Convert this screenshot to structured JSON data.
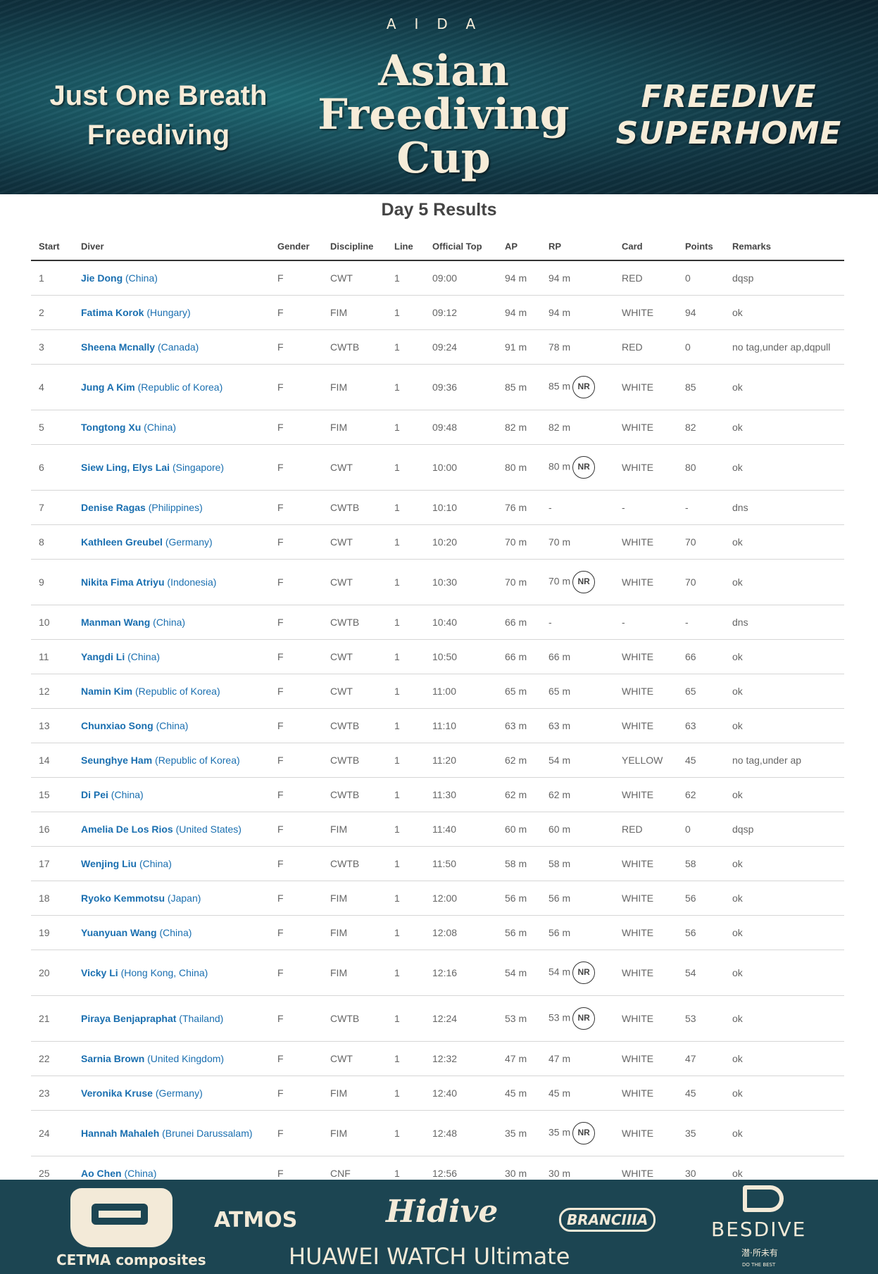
{
  "banner": {
    "aida": "AIDA",
    "left_text": "Just One Breath Freediving",
    "center_title": "Asian Freediving Cup",
    "right_text": "FREEDIVE SUPERHOME"
  },
  "title": "Day 5 Results",
  "columns": [
    "Start",
    "Diver",
    "Gender",
    "Discipline",
    "Line",
    "Official Top",
    "AP",
    "RP",
    "Card",
    "Points",
    "Remarks"
  ],
  "colors": {
    "name": "#1a6fb0",
    "banner": "#184f5c",
    "footer": "#1c4552"
  },
  "rows": [
    {
      "start": "1",
      "name": "Jie Dong",
      "country": "(China)",
      "gender": "F",
      "discipline": "CWT",
      "line": "1",
      "top": "09:00",
      "ap": "94 m",
      "rp": "94 m",
      "nr": false,
      "card": "RED",
      "points": "0",
      "remarks": "dqsp"
    },
    {
      "start": "2",
      "name": "Fatima Korok",
      "country": "(Hungary)",
      "gender": "F",
      "discipline": "FIM",
      "line": "1",
      "top": "09:12",
      "ap": "94 m",
      "rp": "94 m",
      "nr": false,
      "card": "WHITE",
      "points": "94",
      "remarks": "ok"
    },
    {
      "start": "3",
      "name": "Sheena Mcnally",
      "country": "(Canada)",
      "gender": "F",
      "discipline": "CWTB",
      "line": "1",
      "top": "09:24",
      "ap": "91 m",
      "rp": "78 m",
      "nr": false,
      "card": "RED",
      "points": "0",
      "remarks": "no tag,under ap,dqpull"
    },
    {
      "start": "4",
      "name": "Jung A Kim",
      "country": "(Republic of Korea)",
      "gender": "F",
      "discipline": "FIM",
      "line": "1",
      "top": "09:36",
      "ap": "85 m",
      "rp": "85 m",
      "nr": true,
      "card": "WHITE",
      "points": "85",
      "remarks": "ok"
    },
    {
      "start": "5",
      "name": "Tongtong Xu",
      "country": "(China)",
      "gender": "F",
      "discipline": "FIM",
      "line": "1",
      "top": "09:48",
      "ap": "82 m",
      "rp": "82 m",
      "nr": false,
      "card": "WHITE",
      "points": "82",
      "remarks": "ok"
    },
    {
      "start": "6",
      "name": "Siew Ling, Elys Lai",
      "country": "(Singapore)",
      "gender": "F",
      "discipline": "CWT",
      "line": "1",
      "top": "10:00",
      "ap": "80 m",
      "rp": "80 m",
      "nr": true,
      "card": "WHITE",
      "points": "80",
      "remarks": "ok"
    },
    {
      "start": "7",
      "name": "Denise Ragas",
      "country": "(Philippines)",
      "gender": "F",
      "discipline": "CWTB",
      "line": "1",
      "top": "10:10",
      "ap": "76 m",
      "rp": "-",
      "nr": false,
      "card": "-",
      "points": "-",
      "remarks": "dns"
    },
    {
      "start": "8",
      "name": "Kathleen Greubel",
      "country": "(Germany)",
      "gender": "F",
      "discipline": "CWT",
      "line": "1",
      "top": "10:20",
      "ap": "70 m",
      "rp": "70 m",
      "nr": false,
      "card": "WHITE",
      "points": "70",
      "remarks": "ok"
    },
    {
      "start": "9",
      "name": "Nikita Fima Atriyu",
      "country": "(Indonesia)",
      "gender": "F",
      "discipline": "CWT",
      "line": "1",
      "top": "10:30",
      "ap": "70 m",
      "rp": "70 m",
      "nr": true,
      "card": "WHITE",
      "points": "70",
      "remarks": "ok"
    },
    {
      "start": "10",
      "name": "Manman Wang",
      "country": "(China)",
      "gender": "F",
      "discipline": "CWTB",
      "line": "1",
      "top": "10:40",
      "ap": "66 m",
      "rp": "-",
      "nr": false,
      "card": "-",
      "points": "-",
      "remarks": "dns"
    },
    {
      "start": "11",
      "name": "Yangdi Li",
      "country": "(China)",
      "gender": "F",
      "discipline": "CWT",
      "line": "1",
      "top": "10:50",
      "ap": "66 m",
      "rp": "66 m",
      "nr": false,
      "card": "WHITE",
      "points": "66",
      "remarks": "ok"
    },
    {
      "start": "12",
      "name": "Namin Kim",
      "country": "(Republic of Korea)",
      "gender": "F",
      "discipline": "CWT",
      "line": "1",
      "top": "11:00",
      "ap": "65 m",
      "rp": "65 m",
      "nr": false,
      "card": "WHITE",
      "points": "65",
      "remarks": "ok"
    },
    {
      "start": "13",
      "name": "Chunxiao Song",
      "country": "(China)",
      "gender": "F",
      "discipline": "CWTB",
      "line": "1",
      "top": "11:10",
      "ap": "63 m",
      "rp": "63 m",
      "nr": false,
      "card": "WHITE",
      "points": "63",
      "remarks": "ok"
    },
    {
      "start": "14",
      "name": "Seunghye Ham",
      "country": "(Republic of Korea)",
      "gender": "F",
      "discipline": "CWTB",
      "line": "1",
      "top": "11:20",
      "ap": "62 m",
      "rp": "54 m",
      "nr": false,
      "card": "YELLOW",
      "points": "45",
      "remarks": "no tag,under ap"
    },
    {
      "start": "15",
      "name": "Di Pei",
      "country": "(China)",
      "gender": "F",
      "discipline": "CWTB",
      "line": "1",
      "top": "11:30",
      "ap": "62 m",
      "rp": "62 m",
      "nr": false,
      "card": "WHITE",
      "points": "62",
      "remarks": "ok"
    },
    {
      "start": "16",
      "name": "Amelia De Los Rios",
      "country": "(United States)",
      "gender": "F",
      "discipline": "FIM",
      "line": "1",
      "top": "11:40",
      "ap": "60 m",
      "rp": "60 m",
      "nr": false,
      "card": "RED",
      "points": "0",
      "remarks": "dqsp"
    },
    {
      "start": "17",
      "name": "Wenjing Liu",
      "country": "(China)",
      "gender": "F",
      "discipline": "CWTB",
      "line": "1",
      "top": "11:50",
      "ap": "58 m",
      "rp": "58 m",
      "nr": false,
      "card": "WHITE",
      "points": "58",
      "remarks": "ok"
    },
    {
      "start": "18",
      "name": "Ryoko Kemmotsu",
      "country": "(Japan)",
      "gender": "F",
      "discipline": "FIM",
      "line": "1",
      "top": "12:00",
      "ap": "56 m",
      "rp": "56 m",
      "nr": false,
      "card": "WHITE",
      "points": "56",
      "remarks": "ok"
    },
    {
      "start": "19",
      "name": "Yuanyuan Wang",
      "country": "(China)",
      "gender": "F",
      "discipline": "FIM",
      "line": "1",
      "top": "12:08",
      "ap": "56 m",
      "rp": "56 m",
      "nr": false,
      "card": "WHITE",
      "points": "56",
      "remarks": "ok"
    },
    {
      "start": "20",
      "name": "Vicky Li",
      "country": "(Hong Kong, China)",
      "gender": "F",
      "discipline": "FIM",
      "line": "1",
      "top": "12:16",
      "ap": "54 m",
      "rp": "54 m",
      "nr": true,
      "card": "WHITE",
      "points": "54",
      "remarks": "ok"
    },
    {
      "start": "21",
      "name": "Piraya Benjapraphat",
      "country": "(Thailand)",
      "gender": "F",
      "discipline": "CWTB",
      "line": "1",
      "top": "12:24",
      "ap": "53 m",
      "rp": "53 m",
      "nr": true,
      "card": "WHITE",
      "points": "53",
      "remarks": "ok"
    },
    {
      "start": "22",
      "name": "Sarnia Brown",
      "country": "(United Kingdom)",
      "gender": "F",
      "discipline": "CWT",
      "line": "1",
      "top": "12:32",
      "ap": "47 m",
      "rp": "47 m",
      "nr": false,
      "card": "WHITE",
      "points": "47",
      "remarks": "ok"
    },
    {
      "start": "23",
      "name": "Veronika Kruse",
      "country": "(Germany)",
      "gender": "F",
      "discipline": "FIM",
      "line": "1",
      "top": "12:40",
      "ap": "45 m",
      "rp": "45 m",
      "nr": false,
      "card": "WHITE",
      "points": "45",
      "remarks": "ok"
    },
    {
      "start": "24",
      "name": "Hannah Mahaleh",
      "country": "(Brunei Darussalam)",
      "gender": "F",
      "discipline": "FIM",
      "line": "1",
      "top": "12:48",
      "ap": "35 m",
      "rp": "35 m",
      "nr": true,
      "card": "WHITE",
      "points": "35",
      "remarks": "ok"
    },
    {
      "start": "25",
      "name": "Ao Chen",
      "country": "(China)",
      "gender": "F",
      "discipline": "CNF",
      "line": "1",
      "top": "12:56",
      "ap": "30 m",
      "rp": "30 m",
      "nr": false,
      "card": "WHITE",
      "points": "30",
      "remarks": "ok"
    }
  ],
  "nr_label": "NR",
  "sponsors": {
    "cetma": "CETMA composites",
    "atmos": "ATMOS",
    "hidive": "Hidive",
    "branchia": "BRANCIIIA",
    "huawei": "HUAWEI WATCH Ultimate",
    "bestdive": "BESDIVE",
    "bestdive_sub": "潜·所未有",
    "bestdive_tag": "DO THE BEST"
  }
}
